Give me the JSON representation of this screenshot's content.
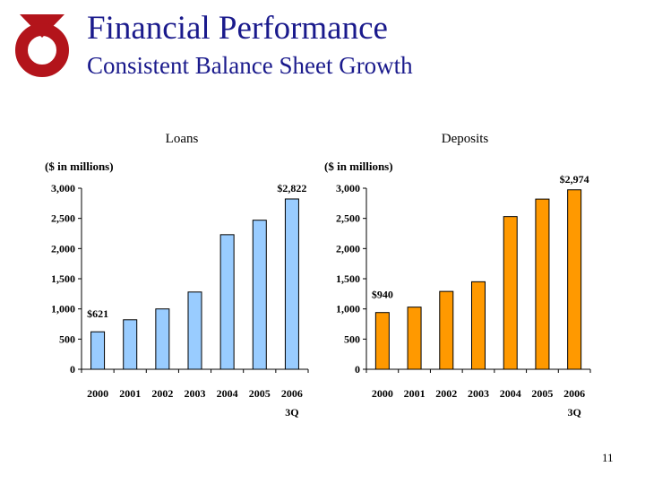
{
  "slide": {
    "title": "Financial Performance",
    "subtitle": "Consistent Balance Sheet Growth",
    "page_number": "11",
    "logo_icon": "red-ring-logo-icon"
  },
  "colors": {
    "title": "#1a1a8c",
    "loans_bar": "#99ccff",
    "deposits_bar": "#ff9900",
    "logo": "#b3141b"
  },
  "chart_data": [
    {
      "type": "bar",
      "title": "Loans",
      "units_label": "($ in millions)",
      "categories": [
        "2000",
        "2001",
        "2002",
        "2003",
        "2004",
        "2005",
        "2006"
      ],
      "category_sublabels": [
        "",
        "",
        "",
        "",
        "",
        "",
        "3Q"
      ],
      "values": [
        621,
        820,
        1000,
        1280,
        2230,
        2470,
        2822
      ],
      "data_labels": [
        {
          "index": 0,
          "text": "$621"
        },
        {
          "index": 6,
          "text": "$2,822"
        }
      ],
      "ylim": [
        0,
        3000
      ],
      "yticks": [
        0,
        500,
        1000,
        1500,
        2000,
        2500,
        3000
      ],
      "ytick_labels": [
        "0",
        "500",
        "1,000",
        "1,500",
        "2,000",
        "2,500",
        "3,000"
      ],
      "grid": false,
      "color": "#99ccff"
    },
    {
      "type": "bar",
      "title": "Deposits",
      "units_label": "($ in millions)",
      "categories": [
        "2000",
        "2001",
        "2002",
        "2003",
        "2004",
        "2005",
        "2006"
      ],
      "category_sublabels": [
        "",
        "",
        "",
        "",
        "",
        "",
        "3Q"
      ],
      "values": [
        940,
        1030,
        1290,
        1450,
        2530,
        2820,
        2974
      ],
      "data_labels": [
        {
          "index": 0,
          "text": "$940"
        },
        {
          "index": 6,
          "text": "$2,974"
        }
      ],
      "ylim": [
        0,
        3000
      ],
      "yticks": [
        0,
        500,
        1000,
        1500,
        2000,
        2500,
        3000
      ],
      "ytick_labels": [
        "0",
        "500",
        "1,000",
        "1,500",
        "2,000",
        "2,500",
        "3,000"
      ],
      "grid": false,
      "color": "#ff9900"
    }
  ]
}
